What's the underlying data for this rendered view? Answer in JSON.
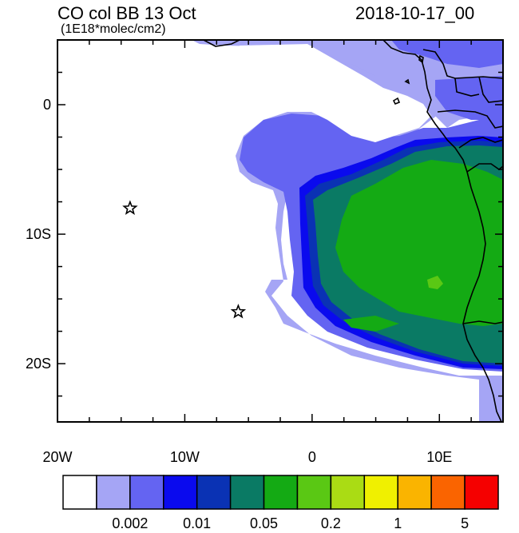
{
  "title": "CO col BB 13 Oct",
  "units": "(1E18*molec/cm2)",
  "timestamp": "2018-10-17_00",
  "axes": {
    "lon_range": [
      -20,
      15
    ],
    "lat_range": [
      -24.5,
      5
    ],
    "x_ticks": [
      {
        "lon": -20,
        "label": "20W"
      },
      {
        "lon": -10,
        "label": "10W"
      },
      {
        "lon": 0,
        "label": "0"
      },
      {
        "lon": 10,
        "label": "10E"
      }
    ],
    "y_ticks": [
      {
        "lat": 0,
        "label": "0"
      },
      {
        "lat": -10,
        "label": "10S"
      },
      {
        "lat": -20,
        "label": "20S"
      }
    ]
  },
  "markers": [
    {
      "name": "star-marker-1",
      "lon": -14.3,
      "lat": -8.0
    },
    {
      "name": "star-marker-2",
      "lon": -5.8,
      "lat": -16.0
    }
  ],
  "colorbar": {
    "colors": [
      "#ffffff",
      "#a5a5f5",
      "#6464f2",
      "#0a0aee",
      "#0a32b4",
      "#0a7a64",
      "#14aa14",
      "#5ac814",
      "#aadc14",
      "#f0f000",
      "#fab400",
      "#fa6400",
      "#f50000"
    ],
    "labels": [
      {
        "after_box": 2,
        "text": "0.002"
      },
      {
        "after_box": 4,
        "text": "0.01"
      },
      {
        "after_box": 6,
        "text": "0.05"
      },
      {
        "after_box": 8,
        "text": "0.2"
      },
      {
        "after_box": 10,
        "text": "1"
      },
      {
        "after_box": 12,
        "text": "5"
      }
    ]
  }
}
